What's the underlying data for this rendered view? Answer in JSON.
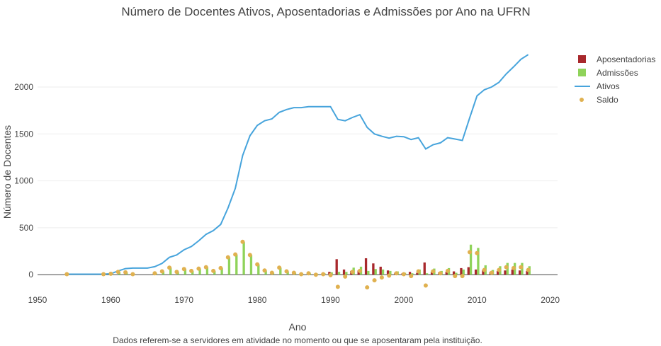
{
  "chart_data": {
    "type": "bar",
    "title": "Número de Docentes Ativos, Aposentadorias e Admissões por Ano na UFRN",
    "xlabel": "Ano",
    "ylabel": "Número de Docentes",
    "note": "Dados referem-se a servidores em atividade no momento ou que se aposentaram pela instituição.",
    "xlim": [
      1950,
      2021
    ],
    "ylim": [
      -270,
      2550
    ],
    "xticks": [
      1950,
      1960,
      1970,
      1980,
      1990,
      2000,
      2010,
      2020
    ],
    "yticks": [
      0,
      500,
      1000,
      1500,
      2000
    ],
    "grid": true,
    "legend_position": "top-right",
    "colors": {
      "aposentadorias": "#a8282c",
      "admissoes": "#8fd35a",
      "ativos": "#47a4dc",
      "saldo": "#e0b150"
    },
    "series": [
      {
        "name": "Aposentadorias",
        "type": "bar",
        "points": [
          [
            1990,
            30
          ],
          [
            1991,
            165
          ],
          [
            1992,
            55
          ],
          [
            1993,
            40
          ],
          [
            1994,
            45
          ],
          [
            1995,
            175
          ],
          [
            1996,
            120
          ],
          [
            1997,
            85
          ],
          [
            1998,
            45
          ],
          [
            1999,
            20
          ],
          [
            2000,
            15
          ],
          [
            2001,
            30
          ],
          [
            2002,
            20
          ],
          [
            2003,
            130
          ],
          [
            2004,
            30
          ],
          [
            2005,
            25
          ],
          [
            2006,
            30
          ],
          [
            2007,
            35
          ],
          [
            2008,
            70
          ],
          [
            2009,
            80
          ],
          [
            2010,
            55
          ],
          [
            2011,
            50
          ],
          [
            2012,
            30
          ],
          [
            2013,
            40
          ],
          [
            2014,
            45
          ],
          [
            2015,
            55
          ],
          [
            2016,
            45
          ],
          [
            2017,
            40
          ]
        ]
      },
      {
        "name": "Admissões",
        "type": "bar",
        "points": [
          [
            1954,
            5
          ],
          [
            1959,
            5
          ],
          [
            1960,
            10
          ],
          [
            1961,
            30
          ],
          [
            1962,
            25
          ],
          [
            1963,
            5
          ],
          [
            1966,
            15
          ],
          [
            1967,
            35
          ],
          [
            1968,
            75
          ],
          [
            1969,
            30
          ],
          [
            1970,
            60
          ],
          [
            1971,
            40
          ],
          [
            1972,
            65
          ],
          [
            1973,
            80
          ],
          [
            1974,
            40
          ],
          [
            1975,
            70
          ],
          [
            1976,
            185
          ],
          [
            1977,
            215
          ],
          [
            1978,
            350
          ],
          [
            1979,
            210
          ],
          [
            1980,
            110
          ],
          [
            1981,
            45
          ],
          [
            1982,
            20
          ],
          [
            1983,
            75
          ],
          [
            1984,
            35
          ],
          [
            1985,
            20
          ],
          [
            1986,
            10
          ],
          [
            1987,
            20
          ],
          [
            1988,
            10
          ],
          [
            1989,
            15
          ],
          [
            1990,
            25
          ],
          [
            1991,
            30
          ],
          [
            1992,
            30
          ],
          [
            1993,
            75
          ],
          [
            1994,
            85
          ],
          [
            1995,
            40
          ],
          [
            1996,
            60
          ],
          [
            1997,
            55
          ],
          [
            1998,
            40
          ],
          [
            1999,
            35
          ],
          [
            2000,
            20
          ],
          [
            2001,
            15
          ],
          [
            2002,
            55
          ],
          [
            2003,
            15
          ],
          [
            2004,
            65
          ],
          [
            2005,
            40
          ],
          [
            2006,
            70
          ],
          [
            2007,
            20
          ],
          [
            2008,
            55
          ],
          [
            2009,
            320
          ],
          [
            2010,
            285
          ],
          [
            2011,
            100
          ],
          [
            2012,
            50
          ],
          [
            2013,
            90
          ],
          [
            2014,
            125
          ],
          [
            2015,
            125
          ],
          [
            2016,
            125
          ],
          [
            2017,
            90
          ]
        ]
      },
      {
        "name": "Ativos",
        "type": "line",
        "points": [
          [
            1954,
            5
          ],
          [
            1955,
            5
          ],
          [
            1956,
            5
          ],
          [
            1957,
            5
          ],
          [
            1958,
            5
          ],
          [
            1959,
            5
          ],
          [
            1960,
            10
          ],
          [
            1961,
            40
          ],
          [
            1962,
            65
          ],
          [
            1963,
            70
          ],
          [
            1964,
            70
          ],
          [
            1965,
            70
          ],
          [
            1966,
            85
          ],
          [
            1967,
            120
          ],
          [
            1968,
            185
          ],
          [
            1969,
            210
          ],
          [
            1970,
            265
          ],
          [
            1971,
            300
          ],
          [
            1972,
            360
          ],
          [
            1973,
            430
          ],
          [
            1974,
            470
          ],
          [
            1975,
            535
          ],
          [
            1976,
            710
          ],
          [
            1977,
            920
          ],
          [
            1978,
            1270
          ],
          [
            1979,
            1480
          ],
          [
            1980,
            1590
          ],
          [
            1981,
            1640
          ],
          [
            1982,
            1660
          ],
          [
            1983,
            1730
          ],
          [
            1984,
            1760
          ],
          [
            1985,
            1780
          ],
          [
            1986,
            1780
          ],
          [
            1987,
            1790
          ],
          [
            1988,
            1790
          ],
          [
            1989,
            1790
          ],
          [
            1990,
            1790
          ],
          [
            1991,
            1655
          ],
          [
            1992,
            1640
          ],
          [
            1993,
            1675
          ],
          [
            1994,
            1705
          ],
          [
            1995,
            1570
          ],
          [
            1996,
            1500
          ],
          [
            1997,
            1475
          ],
          [
            1998,
            1455
          ],
          [
            1999,
            1475
          ],
          [
            2000,
            1470
          ],
          [
            2001,
            1440
          ],
          [
            2002,
            1460
          ],
          [
            2003,
            1340
          ],
          [
            2004,
            1385
          ],
          [
            2005,
            1405
          ],
          [
            2006,
            1460
          ],
          [
            2007,
            1445
          ],
          [
            2008,
            1430
          ],
          [
            2009,
            1670
          ],
          [
            2010,
            1905
          ],
          [
            2011,
            1970
          ],
          [
            2012,
            2000
          ],
          [
            2013,
            2050
          ],
          [
            2014,
            2140
          ],
          [
            2015,
            2215
          ],
          [
            2016,
            2295
          ],
          [
            2017,
            2345
          ]
        ]
      },
      {
        "name": "Saldo",
        "type": "scatter",
        "points": [
          [
            1954,
            5
          ],
          [
            1959,
            5
          ],
          [
            1960,
            10
          ],
          [
            1961,
            30
          ],
          [
            1962,
            25
          ],
          [
            1963,
            5
          ],
          [
            1966,
            15
          ],
          [
            1967,
            35
          ],
          [
            1968,
            75
          ],
          [
            1969,
            30
          ],
          [
            1970,
            60
          ],
          [
            1971,
            40
          ],
          [
            1972,
            65
          ],
          [
            1973,
            80
          ],
          [
            1974,
            40
          ],
          [
            1975,
            70
          ],
          [
            1976,
            185
          ],
          [
            1977,
            215
          ],
          [
            1978,
            350
          ],
          [
            1979,
            210
          ],
          [
            1980,
            110
          ],
          [
            1981,
            45
          ],
          [
            1982,
            20
          ],
          [
            1983,
            75
          ],
          [
            1984,
            35
          ],
          [
            1985,
            20
          ],
          [
            1986,
            5
          ],
          [
            1987,
            15
          ],
          [
            1988,
            0
          ],
          [
            1989,
            5
          ],
          [
            1990,
            -5
          ],
          [
            1991,
            -130
          ],
          [
            1992,
            -20
          ],
          [
            1993,
            30
          ],
          [
            1994,
            40
          ],
          [
            1995,
            -135
          ],
          [
            1996,
            -60
          ],
          [
            1997,
            -30
          ],
          [
            1998,
            -10
          ],
          [
            1999,
            15
          ],
          [
            2000,
            5
          ],
          [
            2001,
            -15
          ],
          [
            2002,
            35
          ],
          [
            2003,
            -115
          ],
          [
            2004,
            35
          ],
          [
            2005,
            15
          ],
          [
            2006,
            40
          ],
          [
            2007,
            -15
          ],
          [
            2008,
            -15
          ],
          [
            2009,
            240
          ],
          [
            2010,
            230
          ],
          [
            2011,
            50
          ],
          [
            2012,
            20
          ],
          [
            2013,
            50
          ],
          [
            2014,
            80
          ],
          [
            2015,
            70
          ],
          [
            2016,
            80
          ],
          [
            2017,
            50
          ]
        ]
      }
    ]
  }
}
